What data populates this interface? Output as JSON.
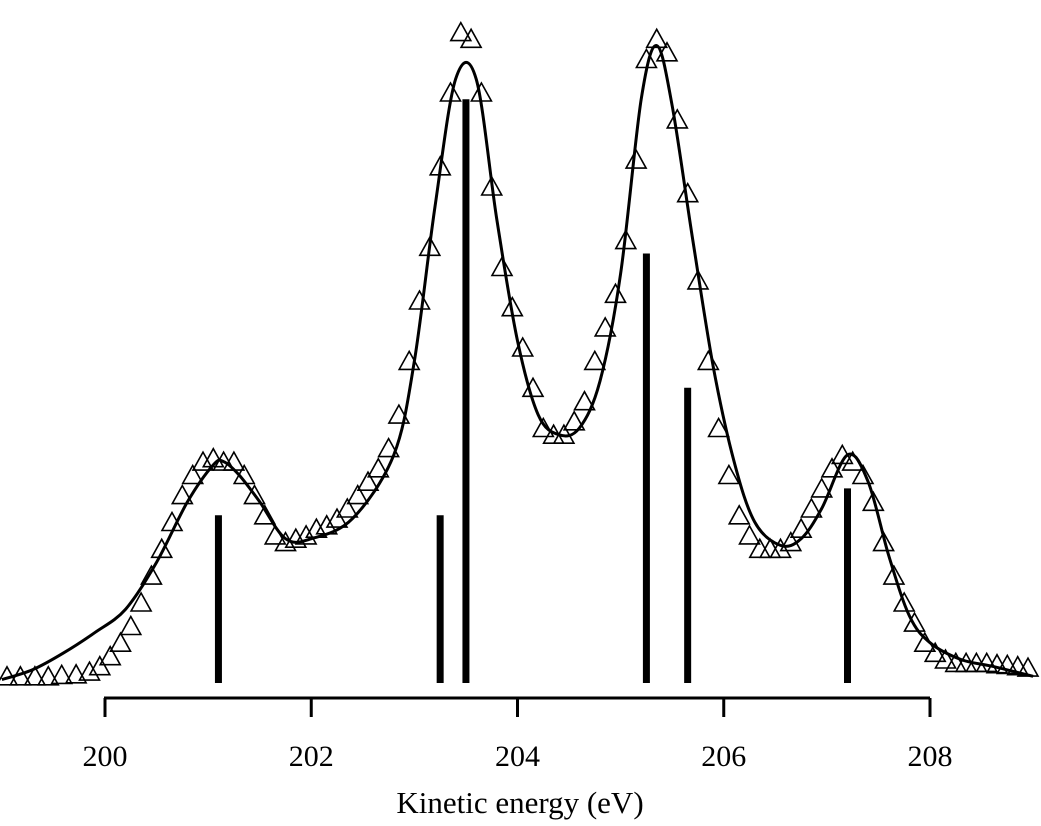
{
  "chart_data": {
    "type": "line",
    "title": "",
    "xlabel": "Kinetic energy (eV)",
    "ylabel": "",
    "xlim": [
      199.0,
      209.0
    ],
    "ylim": [
      0,
      1.0
    ],
    "grid": false,
    "legend": "none",
    "x_ticks": [
      200,
      202,
      204,
      206,
      208
    ],
    "x_tick_labels": [
      "200",
      "202",
      "204",
      "206",
      "208"
    ],
    "colors": {
      "line": "#000000",
      "markers": "#000000",
      "sticks": "#000000"
    },
    "series": [
      {
        "marker": "triangle-open",
        "x": [
          199.05,
          199.18,
          199.32,
          199.45,
          199.58,
          199.72,
          199.85,
          199.95,
          200.05,
          200.15,
          200.25,
          200.35,
          200.45,
          200.55,
          200.65,
          200.75,
          200.85,
          200.95,
          201.05,
          201.15,
          201.25,
          201.35,
          201.45,
          201.55,
          201.65,
          201.75,
          201.85,
          201.95,
          202.05,
          202.15,
          202.25,
          202.35,
          202.45,
          202.55,
          202.65,
          202.75,
          202.85,
          202.95,
          203.05,
          203.15,
          203.25,
          203.35,
          203.45,
          203.55,
          203.65,
          203.75,
          203.85,
          203.95,
          204.05,
          204.15,
          204.25,
          204.35,
          204.45,
          204.55,
          204.65,
          204.75,
          204.85,
          204.95,
          205.05,
          205.15,
          205.25,
          205.35,
          205.45,
          205.55,
          205.65,
          205.75,
          205.85,
          205.95,
          206.05,
          206.15,
          206.25,
          206.35,
          206.45,
          206.55,
          206.65,
          206.75,
          206.85,
          206.95,
          207.05,
          207.15,
          207.25,
          207.35,
          207.45,
          207.55,
          207.65,
          207.75,
          207.85,
          207.95,
          208.05,
          208.15,
          208.25,
          208.35,
          208.45,
          208.55,
          208.65,
          208.75,
          208.85,
          208.95
        ],
        "y": [
          0.01,
          0.01,
          0.01,
          0.01,
          0.012,
          0.013,
          0.017,
          0.025,
          0.04,
          0.06,
          0.085,
          0.12,
          0.16,
          0.2,
          0.24,
          0.28,
          0.31,
          0.33,
          0.335,
          0.33,
          0.33,
          0.31,
          0.28,
          0.25,
          0.22,
          0.21,
          0.215,
          0.22,
          0.23,
          0.235,
          0.245,
          0.26,
          0.28,
          0.3,
          0.32,
          0.35,
          0.4,
          0.48,
          0.57,
          0.65,
          0.77,
          0.88,
          0.97,
          0.96,
          0.88,
          0.74,
          0.62,
          0.56,
          0.5,
          0.44,
          0.38,
          0.37,
          0.37,
          0.39,
          0.42,
          0.48,
          0.53,
          0.58,
          0.66,
          0.78,
          0.93,
          0.96,
          0.94,
          0.84,
          0.73,
          0.6,
          0.48,
          0.38,
          0.31,
          0.25,
          0.22,
          0.2,
          0.2,
          0.2,
          0.21,
          0.23,
          0.26,
          0.29,
          0.32,
          0.34,
          0.33,
          0.31,
          0.27,
          0.21,
          0.16,
          0.12,
          0.09,
          0.06,
          0.045,
          0.035,
          0.03,
          0.03,
          0.03,
          0.03,
          0.028,
          0.027,
          0.025,
          0.023
        ]
      },
      {
        "marker": "none",
        "x": [
          199.0,
          199.3,
          199.6,
          199.9,
          200.2,
          200.5,
          200.8,
          201.05,
          201.15,
          201.3,
          201.5,
          201.75,
          202.0,
          202.4,
          202.8,
          203.0,
          203.2,
          203.4,
          203.6,
          203.8,
          204.0,
          204.2,
          204.4,
          204.6,
          204.8,
          205.0,
          205.2,
          205.35,
          205.5,
          205.7,
          205.9,
          206.1,
          206.3,
          206.55,
          206.75,
          206.95,
          207.2,
          207.4,
          207.6,
          207.8,
          208.0,
          208.3,
          208.6,
          209.0
        ],
        "y": [
          0.005,
          0.02,
          0.045,
          0.075,
          0.11,
          0.18,
          0.27,
          0.325,
          0.33,
          0.31,
          0.27,
          0.215,
          0.215,
          0.245,
          0.34,
          0.48,
          0.71,
          0.9,
          0.9,
          0.69,
          0.51,
          0.4,
          0.37,
          0.38,
          0.45,
          0.61,
          0.87,
          0.95,
          0.86,
          0.66,
          0.47,
          0.33,
          0.24,
          0.205,
          0.215,
          0.26,
          0.34,
          0.3,
          0.19,
          0.1,
          0.06,
          0.035,
          0.025,
          0.01
        ]
      }
    ],
    "sticks": [
      {
        "x": 201.1,
        "y": 0.25
      },
      {
        "x": 203.25,
        "y": 0.25
      },
      {
        "x": 203.5,
        "y": 0.87
      },
      {
        "x": 205.25,
        "y": 0.64
      },
      {
        "x": 205.65,
        "y": 0.44
      },
      {
        "x": 207.2,
        "y": 0.29
      }
    ]
  }
}
